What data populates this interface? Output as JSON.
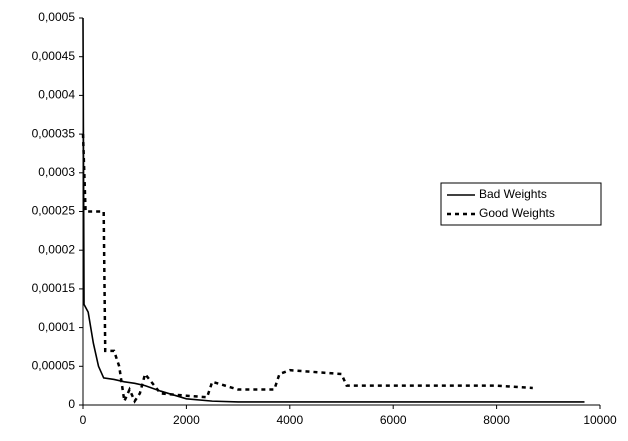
{
  "chart_data": {
    "type": "line",
    "x_series": true,
    "xlim": [
      0,
      10000
    ],
    "xticks": [
      0,
      2000,
      4000,
      6000,
      8000,
      10000
    ],
    "ylim": [
      0,
      0.0005
    ],
    "yticks": [
      0,
      {
        "value": 5e-05,
        "label": "0,00005"
      },
      {
        "value": 0.0001,
        "label": "0,0001"
      },
      {
        "value": 0.00015,
        "label": "0,00015"
      },
      {
        "value": 0.0002,
        "label": "0,0002"
      },
      {
        "value": 0.00025,
        "label": "0,00025"
      },
      {
        "value": 0.0003,
        "label": "0,0003"
      },
      {
        "value": 0.00035,
        "label": "0,00035"
      },
      {
        "value": 0.0004,
        "label": "0,0004"
      },
      {
        "value": 0.00045,
        "label": "0,00045"
      },
      {
        "value": 0.0005,
        "label": "0,0005"
      }
    ],
    "legend": "right",
    "series": [
      {
        "name": "Bad Weights",
        "color": "#000000",
        "dash": "solid",
        "x": [
          0,
          20,
          100,
          200,
          300,
          400,
          600,
          800,
          1000,
          1200,
          1500,
          2000,
          2500,
          3000,
          5000,
          8000,
          9700
        ],
        "values": [
          0.0005,
          0.00013,
          0.00012,
          8e-05,
          5e-05,
          3.5e-05,
          3.3e-05,
          3e-05,
          2.8e-05,
          2.5e-05,
          1.8e-05,
          8e-06,
          5e-06,
          4e-06,
          4e-06,
          4e-06,
          4e-06
        ]
      },
      {
        "name": "Good Weights",
        "color": "#000000",
        "dash": "dashed",
        "x": [
          0,
          50,
          400,
          430,
          600,
          700,
          800,
          900,
          1000,
          1100,
          1200,
          1500,
          2000,
          2400,
          2500,
          3000,
          3700,
          3800,
          4000,
          5000,
          5100,
          6000,
          7000,
          8000,
          8700
        ],
        "values": [
          0.00035,
          0.00025,
          0.00025,
          7e-05,
          7e-05,
          5e-05,
          5e-06,
          2e-05,
          5e-06,
          1.5e-05,
          4e-05,
          1.5e-05,
          1.2e-05,
          1e-05,
          3e-05,
          2e-05,
          2e-05,
          4e-05,
          4.5e-05,
          4e-05,
          2.5e-05,
          2.5e-05,
          2.5e-05,
          2.5e-05,
          2.2e-05
        ]
      }
    ]
  }
}
